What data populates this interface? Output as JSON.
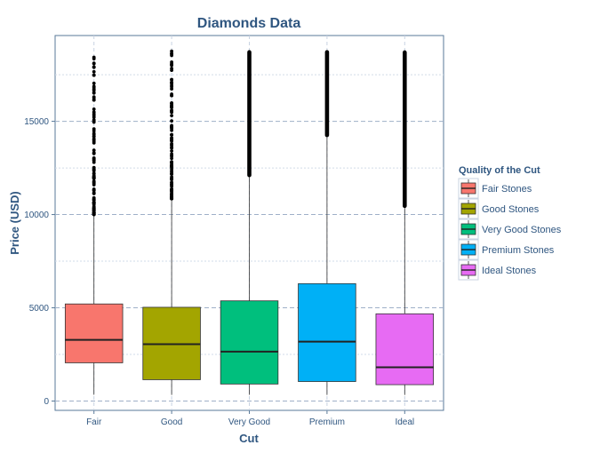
{
  "chart_data": {
    "type": "box",
    "title": "Diamonds Data",
    "xlabel": "Cut",
    "ylabel": "Price (USD)",
    "ylim": [
      -500,
      19600
    ],
    "yticks": [
      0,
      5000,
      10000,
      15000
    ],
    "ytick_labels": [
      "0",
      "5000",
      "10000",
      "15000"
    ],
    "categories": [
      "Fair",
      "Good",
      "Very Good",
      "Premium",
      "Ideal"
    ],
    "grid": true,
    "legend": {
      "title": "Quality of the Cut",
      "position": "right",
      "entries": [
        "Fair Stones",
        "Good Stones",
        "Very Good Stones",
        "Premium Stones",
        "Ideal Stones"
      ]
    },
    "series": [
      {
        "category": "Fair",
        "color": "#F8766D",
        "whisker_low": 337,
        "q1": 2050,
        "median": 3282,
        "q3": 5206,
        "whisker_high": 10000,
        "outlier_min": 10000,
        "outlier_max": 18574,
        "outlier_density": "sparse"
      },
      {
        "category": "Good",
        "color": "#A3A500",
        "whisker_low": 327,
        "q1": 1145,
        "median": 3050,
        "q3": 5028,
        "whisker_high": 10850,
        "outlier_min": 10850,
        "outlier_max": 18788,
        "outlier_density": "sparse"
      },
      {
        "category": "Very Good",
        "color": "#00BF7D",
        "whisker_low": 336,
        "q1": 912,
        "median": 2648,
        "q3": 5373,
        "whisker_high": 12000,
        "outlier_min": 12000,
        "outlier_max": 18818,
        "outlier_density": "dense"
      },
      {
        "category": "Premium",
        "color": "#00B0F6",
        "whisker_low": 326,
        "q1": 1046,
        "median": 3185,
        "q3": 6296,
        "whisker_high": 14150,
        "outlier_min": 14150,
        "outlier_max": 18823,
        "outlier_density": "dense"
      },
      {
        "category": "Ideal",
        "color": "#E76BF3",
        "whisker_low": 326,
        "q1": 878,
        "median": 1810,
        "q3": 4678,
        "whisker_high": 10350,
        "outlier_min": 10350,
        "outlier_max": 18806,
        "outlier_density": "dense"
      }
    ]
  }
}
